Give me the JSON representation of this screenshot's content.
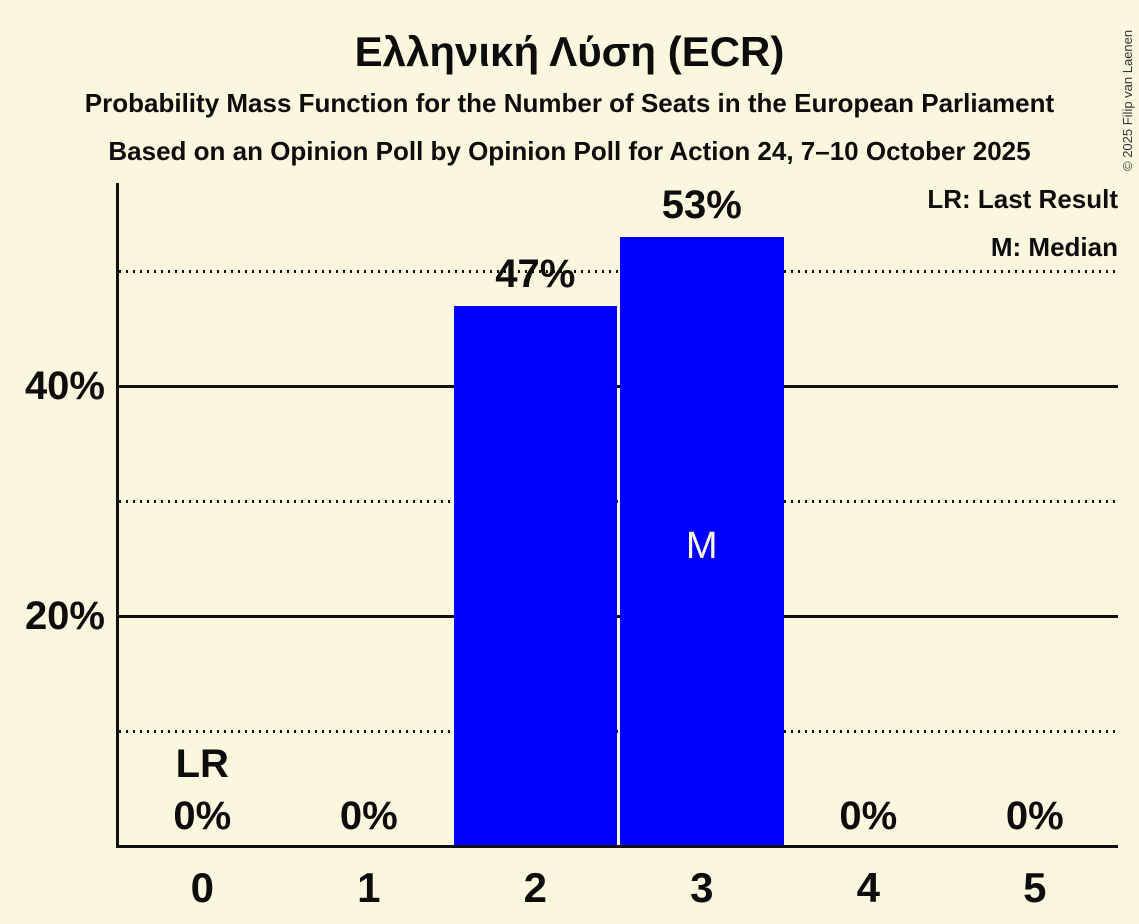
{
  "title": "Ελληνική Λύση (ECR)",
  "subtitle_line1": "Probability Mass Function for the Number of Seats in the European Parliament",
  "subtitle_line2": "Based on an Opinion Poll by Opinion Poll for Action 24, 7–10 October 2025",
  "legend": {
    "last_result": "LR: Last Result",
    "median": "M: Median"
  },
  "copyright": "© 2025 Filip van Laenen",
  "colors": {
    "background": "#FBF7DF",
    "bar": "#0000FF",
    "text": "#0D0D0D",
    "gridline": "#111111",
    "median_label": "#FBF7DF",
    "copyright_text": "#333333"
  },
  "chart_data": {
    "type": "bar",
    "categories": [
      "0",
      "1",
      "2",
      "3",
      "4",
      "5"
    ],
    "values": [
      0,
      0,
      47,
      53,
      0,
      0
    ],
    "bar_labels": [
      "0%",
      "0%",
      "47%",
      "53%",
      "0%",
      "0%"
    ],
    "y_ticks": [
      {
        "value": 20,
        "label": "20%"
      },
      {
        "value": 40,
        "label": "40%"
      }
    ],
    "solid_gridlines": [
      20,
      40
    ],
    "dotted_gridlines": [
      10,
      30,
      50
    ],
    "ylim": [
      0,
      57.5
    ],
    "xlabel": "",
    "ylabel": "",
    "legend_position": "top-right",
    "median_category": "3",
    "median_marker": "M",
    "last_result_category": "0",
    "last_result_marker": "LR"
  }
}
